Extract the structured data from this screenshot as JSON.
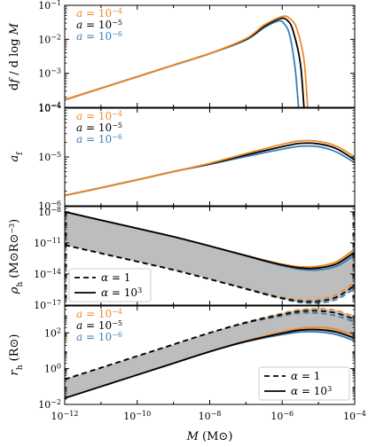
{
  "colors": {
    "a1e4": "#f08a24",
    "a1e5": "#000000",
    "a1e6": "#3b7fb8",
    "band": "#bdbdbd"
  },
  "chart_data": [
    {
      "type": "line",
      "panel": "df-dlogM",
      "ylabel": "df / d log M",
      "yscale": "log",
      "ylim_exp": [
        -4,
        -1
      ],
      "yticks_exp": [
        -4,
        -3,
        -2,
        -1
      ],
      "legend": {
        "placement": "top-left",
        "entries": [
          "a = 10^-4",
          "a = 10^-5",
          "a = 10^-6"
        ]
      },
      "series": [
        {
          "name": "a = 10^-4",
          "color": "a1e4",
          "x_exp": [
            -12,
            -11,
            -10,
            -9,
            -8,
            -7,
            -6.5,
            -6,
            -5.8,
            -5.6,
            -5.4,
            -5.3
          ],
          "y_exp": [
            -3.78,
            -3.44,
            -3.1,
            -2.76,
            -2.42,
            -1.98,
            -1.58,
            -1.33,
            -1.38,
            -1.68,
            -2.6,
            -4.0
          ]
        },
        {
          "name": "a = 10^-5",
          "color": "a1e5",
          "x_exp": [
            -12,
            -11,
            -10,
            -9,
            -8,
            -7,
            -6.5,
            -6.05,
            -5.85,
            -5.7,
            -5.5,
            -5.4
          ],
          "y_exp": [
            -3.78,
            -3.44,
            -3.1,
            -2.76,
            -2.42,
            -2.0,
            -1.62,
            -1.39,
            -1.45,
            -1.75,
            -2.7,
            -4.0
          ]
        },
        {
          "name": "a = 10^-6",
          "color": "a1e6",
          "x_exp": [
            -12,
            -11,
            -10,
            -9,
            -8,
            -7,
            -6.5,
            -6.1,
            -5.95,
            -5.8,
            -5.65,
            -5.55
          ],
          "y_exp": [
            -3.78,
            -3.44,
            -3.1,
            -2.76,
            -2.42,
            -2.02,
            -1.66,
            -1.46,
            -1.54,
            -1.85,
            -2.8,
            -4.0
          ]
        }
      ]
    },
    {
      "type": "line",
      "panel": "af",
      "ylabel": "a_f",
      "yscale": "log",
      "ylim_exp": [
        -6,
        -4
      ],
      "yticks_exp": [
        -6,
        -5,
        -4
      ],
      "legend": {
        "placement": "top-left",
        "entries": [
          "a = 10^-4",
          "a = 10^-5",
          "a = 10^-6"
        ]
      },
      "series": [
        {
          "name": "a = 10^-4",
          "color": "a1e4",
          "x_exp": [
            -12,
            -11,
            -10,
            -9,
            -8,
            -7,
            -6,
            -5.5,
            -5,
            -4.5,
            -4
          ],
          "y_exp": [
            -5.79,
            -5.63,
            -5.47,
            -5.3,
            -5.13,
            -4.93,
            -4.74,
            -4.67,
            -4.68,
            -4.78,
            -5.0
          ]
        },
        {
          "name": "a = 10^-5",
          "color": "a1e5",
          "x_exp": [
            -12,
            -11,
            -10,
            -9,
            -8,
            -7,
            -6,
            -5.5,
            -5,
            -4.5,
            -4
          ],
          "y_exp": [
            -5.79,
            -5.63,
            -5.47,
            -5.3,
            -5.14,
            -4.96,
            -4.79,
            -4.72,
            -4.73,
            -4.83,
            -5.06
          ]
        },
        {
          "name": "a = 10^-6",
          "color": "a1e6",
          "x_exp": [
            -12,
            -11,
            -10,
            -9,
            -8,
            -7,
            -6,
            -5.5,
            -5,
            -4.5,
            -4
          ],
          "y_exp": [
            -5.79,
            -5.63,
            -5.47,
            -5.3,
            -5.15,
            -4.99,
            -4.84,
            -4.78,
            -4.79,
            -4.9,
            -5.12
          ]
        }
      ]
    },
    {
      "type": "area",
      "panel": "rho-h",
      "ylabel": "ρ_h (M⊙ R⊙^-3)",
      "yscale": "log",
      "ylim_exp": [
        -17,
        -7.5
      ],
      "yticks_exp": [
        -17,
        -14,
        -11,
        -8
      ],
      "legend": {
        "placement": "bottom-left",
        "entries": [
          "α = 1",
          "α = 10^3"
        ]
      },
      "series": [
        {
          "name": "α = 10^3",
          "style": "solid",
          "x_exp": [
            -12,
            -11,
            -10,
            -9,
            -8,
            -7,
            -6.5,
            -6,
            -5.5,
            -5,
            -4.5,
            -4
          ],
          "upper_exp": [
            -8.0,
            -8.8,
            -9.6,
            -10.4,
            -11.3,
            -12.2,
            -12.65,
            -13.05,
            -13.3,
            -13.25,
            -12.8,
            -11.6
          ],
          "lower_exp": [
            -8.0,
            -8.8,
            -9.6,
            -10.4,
            -11.3,
            -12.25,
            -12.75,
            -13.2,
            -13.55,
            -13.6,
            -13.25,
            -12.2
          ]
        },
        {
          "name": "α = 1",
          "style": "dashed",
          "x_exp": [
            -12,
            -11,
            -10,
            -9,
            -8,
            -7,
            -6.5,
            -6,
            -5.5,
            -5,
            -4.5,
            -4
          ],
          "upper_exp": [
            -11.2,
            -12.0,
            -12.8,
            -13.6,
            -14.5,
            -15.4,
            -15.85,
            -16.25,
            -16.5,
            -16.45,
            -16.0,
            -14.8
          ],
          "lower_exp": [
            -11.2,
            -12.0,
            -12.8,
            -13.6,
            -14.5,
            -15.45,
            -15.95,
            -16.4,
            -16.75,
            -16.8,
            -16.45,
            -15.4
          ]
        }
      ]
    },
    {
      "type": "area",
      "panel": "r-h",
      "ylabel": "r_h (R⊙)",
      "xlabel": "M (M⊙)",
      "yscale": "log",
      "xscale": "log",
      "ylim_exp": [
        -2,
        3.5
      ],
      "yticks_exp": [
        -2,
        0,
        2
      ],
      "xlim_exp": [
        -12,
        -4
      ],
      "xticks_exp": [
        -12,
        -10,
        -8,
        -6,
        -4
      ],
      "legend_colors": {
        "placement": "top-left",
        "entries": [
          "a = 10^-4",
          "a = 10^-5",
          "a = 10^-6"
        ]
      },
      "legend_styles": {
        "placement": "bottom-right",
        "entries": [
          "α = 1",
          "α = 10^3"
        ]
      },
      "series": [
        {
          "name": "α = 1",
          "style": "dashed",
          "x_exp": [
            -12,
            -11,
            -10,
            -9,
            -8,
            -7,
            -6,
            -5.5,
            -5,
            -4.5,
            -4
          ],
          "upper_exp": [
            -0.6,
            0.05,
            0.7,
            1.35,
            2.0,
            2.6,
            3.1,
            3.3,
            3.35,
            3.25,
            2.9
          ],
          "lower_exp": [
            -0.6,
            0.05,
            0.7,
            1.35,
            2.0,
            2.55,
            2.95,
            3.1,
            3.1,
            2.95,
            2.6
          ]
        },
        {
          "name": "α = 10^3",
          "style": "solid",
          "x_exp": [
            -12,
            -11,
            -10,
            -9,
            -8,
            -7,
            -6,
            -5.5,
            -5,
            -4.5,
            -4
          ],
          "upper_exp": [
            -1.65,
            -1.0,
            -0.35,
            0.3,
            0.95,
            1.55,
            2.05,
            2.25,
            2.3,
            2.2,
            1.85
          ],
          "lower_exp": [
            -1.65,
            -1.0,
            -0.35,
            0.3,
            0.95,
            1.5,
            1.9,
            2.05,
            2.05,
            1.9,
            1.55
          ]
        }
      ]
    }
  ],
  "labels": {
    "a_sym": "a",
    "alpha_sym": "α",
    "eq": " = ",
    "ten": "10",
    "e4": "−4",
    "e5": "−5",
    "e6": "−6",
    "one": "1",
    "e3": "3",
    "ylabel1": "df / d log M",
    "ylabel2_main": "a",
    "ylabel2_sub": "f",
    "ylabel3_main": "ρ",
    "ylabel3_sub": "h",
    "ylabel3_unit": "(M⊙R⊙",
    "ylabel3_exp": "−3",
    "ylabel3_close": ")",
    "ylabel4_main": "r",
    "ylabel4_sub": "h",
    "ylabel4_unit": "(R⊙)",
    "xlabel": "M (M⊙)"
  }
}
